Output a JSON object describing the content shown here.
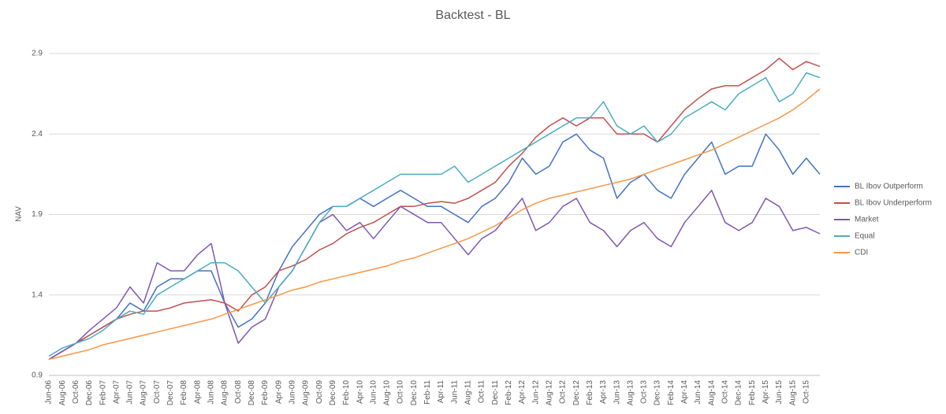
{
  "chart_data": {
    "type": "line",
    "title": "Backtest - BL",
    "y_label": "NAV",
    "categories": [
      "Jun-06",
      "Aug-06",
      "Oct-06",
      "Dec-06",
      "Feb-07",
      "Apr-07",
      "Jun-07",
      "Aug-07",
      "Oct-07",
      "Dec-07",
      "Feb-08",
      "Apr-08",
      "Jun-08",
      "Aug-08",
      "Oct-08",
      "Dec-08",
      "Feb-09",
      "Apr-09",
      "Jun-09",
      "Aug-09",
      "Oct-09",
      "Dec-09",
      "Feb-10",
      "Apr-10",
      "Jun-10",
      "Aug-10",
      "Oct-10",
      "Dec-10",
      "Feb-11",
      "Apr-11",
      "Jun-11",
      "Aug-11",
      "Oct-11",
      "Dec-11",
      "Feb-12",
      "Apr-12",
      "Jun-12",
      "Aug-12",
      "Oct-12",
      "Dec-12",
      "Feb-13",
      "Apr-13",
      "Jun-13",
      "Aug-13",
      "Oct-13",
      "Dec-13",
      "Feb-14",
      "Apr-14",
      "Jun-14",
      "Aug-14",
      "Oct-14",
      "Dec-14",
      "Feb-15",
      "Apr-15",
      "Jun-15",
      "Aug-15",
      "Oct-15",
      null
    ],
    "series": [
      {
        "name": "BL Ibov Outperform",
        "color": "#4472c4",
        "values": [
          1.0,
          1.05,
          1.1,
          1.15,
          1.2,
          1.25,
          1.35,
          1.3,
          1.45,
          1.5,
          1.5,
          1.55,
          1.55,
          1.35,
          1.2,
          1.25,
          1.35,
          1.55,
          1.7,
          1.8,
          1.9,
          1.95,
          1.95,
          2.0,
          1.95,
          2.0,
          2.05,
          2.0,
          1.95,
          1.95,
          1.9,
          1.85,
          1.95,
          2.0,
          2.1,
          2.25,
          2.15,
          2.2,
          2.35,
          2.4,
          2.3,
          2.25,
          2.0,
          2.1,
          2.15,
          2.05,
          2.0,
          2.15,
          2.25,
          2.35,
          2.15,
          2.2,
          2.2,
          2.4,
          2.3,
          2.15,
          2.25,
          2.15
        ]
      },
      {
        "name": "BL Ibov Underperform",
        "color": "#c0504d",
        "values": [
          1.0,
          1.05,
          1.1,
          1.15,
          1.2,
          1.25,
          1.28,
          1.3,
          1.3,
          1.32,
          1.35,
          1.36,
          1.37,
          1.35,
          1.3,
          1.4,
          1.45,
          1.55,
          1.58,
          1.62,
          1.68,
          1.72,
          1.78,
          1.82,
          1.85,
          1.9,
          1.95,
          1.95,
          1.97,
          1.98,
          1.97,
          2.0,
          2.05,
          2.1,
          2.2,
          2.28,
          2.38,
          2.45,
          2.5,
          2.45,
          2.5,
          2.5,
          2.4,
          2.4,
          2.4,
          2.35,
          2.45,
          2.55,
          2.62,
          2.68,
          2.7,
          2.7,
          2.75,
          2.8,
          2.87,
          2.8,
          2.85,
          2.82
        ]
      },
      {
        "name": "Market",
        "color": "#7e57b4",
        "values": [
          1.0,
          1.05,
          1.1,
          1.18,
          1.25,
          1.32,
          1.45,
          1.35,
          1.6,
          1.55,
          1.55,
          1.65,
          1.72,
          1.35,
          1.1,
          1.2,
          1.25,
          1.45,
          1.55,
          1.7,
          1.85,
          1.9,
          1.8,
          1.85,
          1.75,
          1.85,
          1.95,
          1.9,
          1.85,
          1.85,
          1.75,
          1.65,
          1.75,
          1.8,
          1.9,
          2.0,
          1.8,
          1.85,
          1.95,
          2.0,
          1.85,
          1.8,
          1.7,
          1.8,
          1.85,
          1.75,
          1.7,
          1.85,
          1.95,
          2.05,
          1.85,
          1.8,
          1.85,
          2.0,
          1.95,
          1.8,
          1.82,
          1.78
        ]
      },
      {
        "name": "Equal",
        "color": "#4bacc6",
        "values": [
          1.02,
          1.07,
          1.1,
          1.13,
          1.18,
          1.25,
          1.3,
          1.28,
          1.4,
          1.45,
          1.5,
          1.55,
          1.6,
          1.6,
          1.55,
          1.45,
          1.35,
          1.45,
          1.55,
          1.7,
          1.85,
          1.95,
          1.95,
          2.0,
          2.05,
          2.1,
          2.15,
          2.15,
          2.15,
          2.15,
          2.2,
          2.1,
          2.15,
          2.2,
          2.25,
          2.3,
          2.35,
          2.4,
          2.45,
          2.5,
          2.5,
          2.6,
          2.45,
          2.4,
          2.45,
          2.35,
          2.4,
          2.5,
          2.55,
          2.6,
          2.55,
          2.65,
          2.7,
          2.75,
          2.6,
          2.65,
          2.78,
          2.75
        ]
      },
      {
        "name": "CDI",
        "color": "#f79646",
        "values": [
          1.0,
          1.02,
          1.04,
          1.06,
          1.09,
          1.11,
          1.13,
          1.15,
          1.17,
          1.19,
          1.21,
          1.23,
          1.25,
          1.28,
          1.31,
          1.34,
          1.37,
          1.4,
          1.43,
          1.45,
          1.48,
          1.5,
          1.52,
          1.54,
          1.56,
          1.58,
          1.61,
          1.63,
          1.66,
          1.69,
          1.72,
          1.75,
          1.79,
          1.83,
          1.88,
          1.93,
          1.97,
          2.0,
          2.02,
          2.04,
          2.06,
          2.08,
          2.1,
          2.12,
          2.15,
          2.18,
          2.21,
          2.24,
          2.27,
          2.3,
          2.34,
          2.38,
          2.42,
          2.46,
          2.5,
          2.55,
          2.61,
          2.68
        ]
      }
    ],
    "ylim": [
      0.9,
      2.9
    ],
    "yticks": [
      0.9,
      1.4,
      1.9,
      2.4,
      2.9
    ],
    "grid": true,
    "legend": "right"
  }
}
